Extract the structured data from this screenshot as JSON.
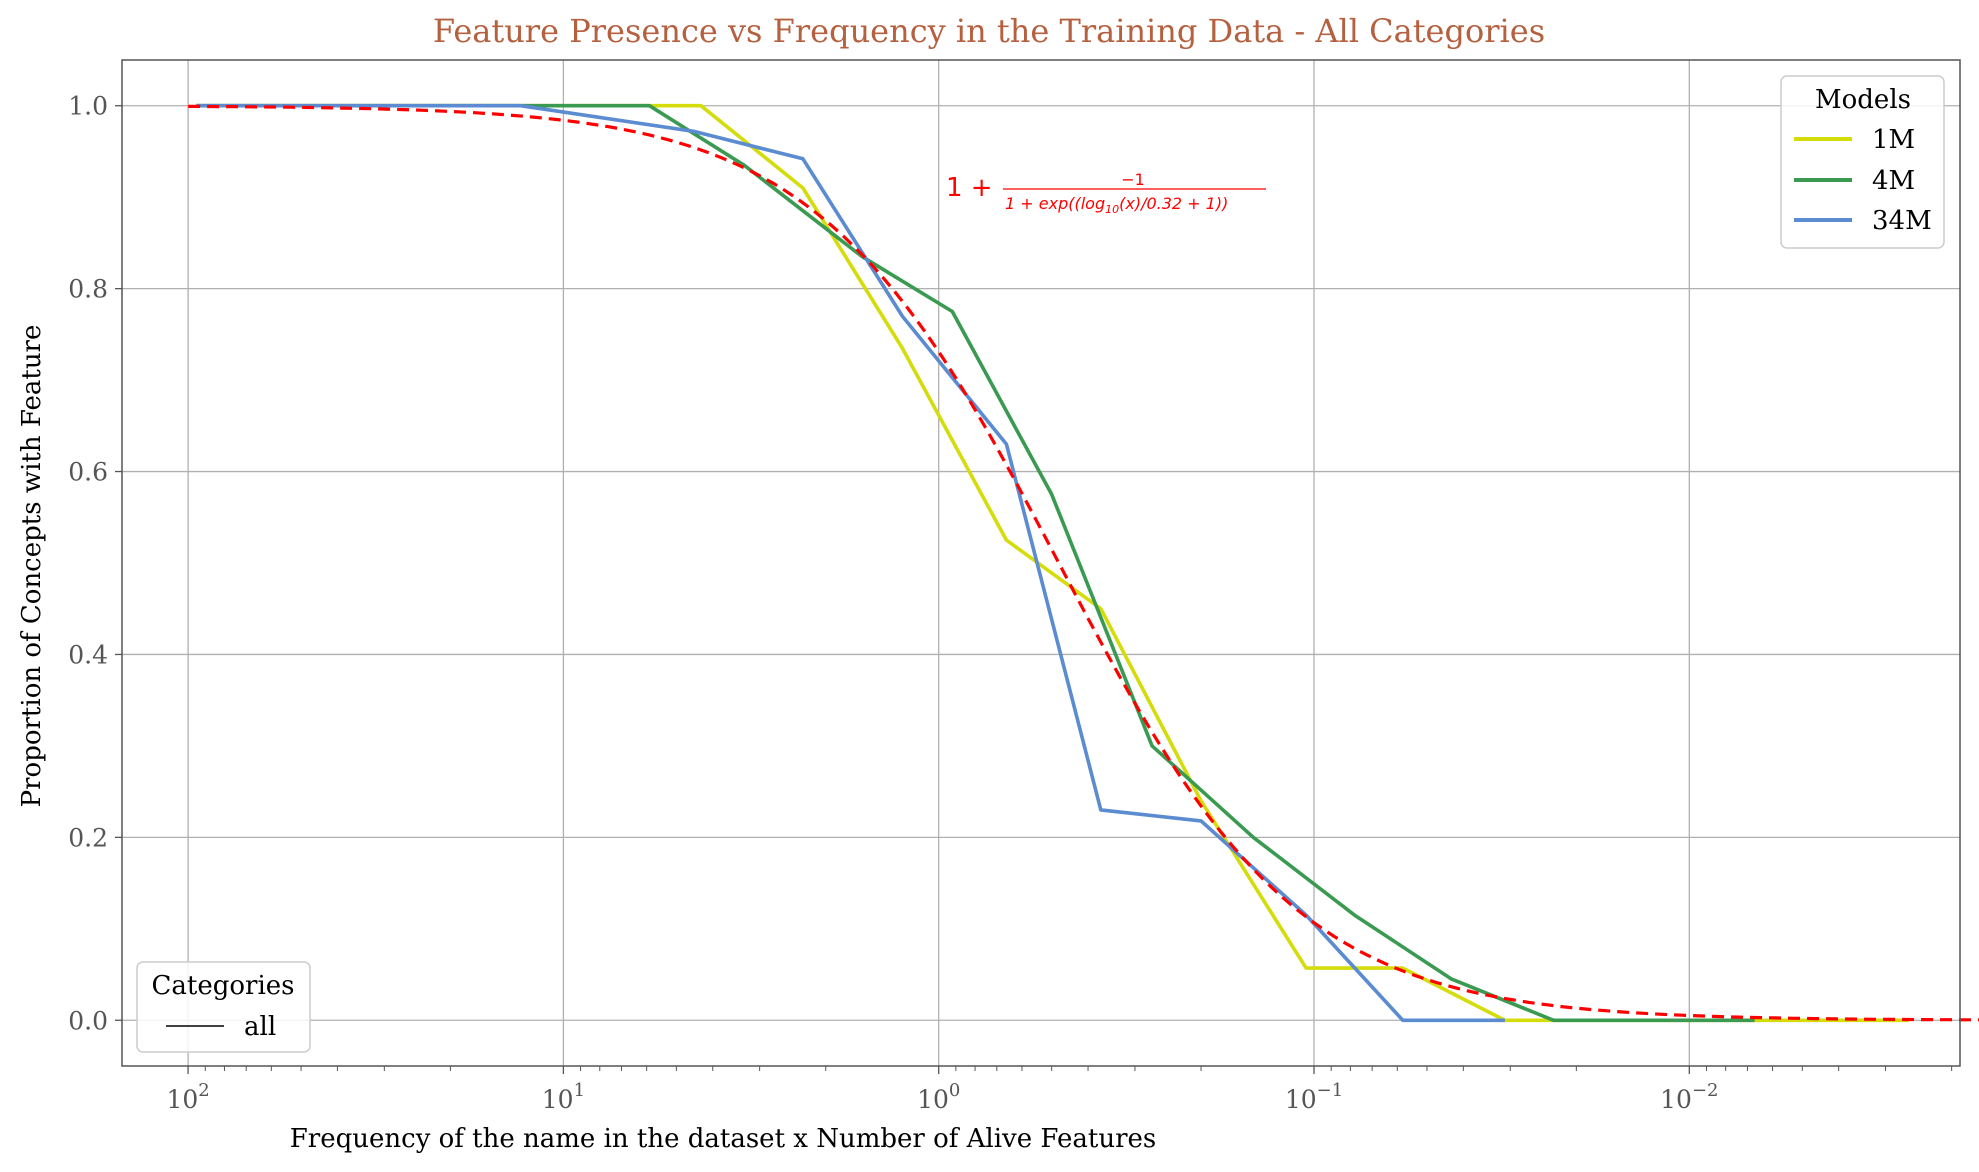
{
  "chart_data": {
    "type": "line",
    "title": "Feature Presence vs Frequency in the Training Data - All Categories",
    "xlabel": "Frequency of the name in the dataset x Number of Alive Features",
    "ylabel": "Proportion of Concepts with Feature",
    "x_scale": "log",
    "x_inverted": true,
    "xlim": [
      150,
      0.0019
    ],
    "ylim": [
      -0.05,
      1.05
    ],
    "x_ticks": [
      {
        "value": 100,
        "base": "10",
        "exp": "2"
      },
      {
        "value": 10,
        "base": "10",
        "exp": "1"
      },
      {
        "value": 1,
        "base": "10",
        "exp": "0"
      },
      {
        "value": 0.1,
        "base": "10",
        "exp": "−1"
      },
      {
        "value": 0.01,
        "base": "10",
        "exp": "−2"
      }
    ],
    "y_ticks": [
      {
        "value": 0.0,
        "label": "0.0"
      },
      {
        "value": 0.2,
        "label": "0.2"
      },
      {
        "value": 0.4,
        "label": "0.4"
      },
      {
        "value": 0.6,
        "label": "0.6"
      },
      {
        "value": 0.8,
        "label": "0.8"
      },
      {
        "value": 1.0,
        "label": "1.0"
      }
    ],
    "grid": true,
    "series": [
      {
        "name": "1M",
        "color": "#d4dc0a",
        "points": [
          [
            95,
            1.0
          ],
          [
            4.3,
            1.0
          ],
          [
            2.3,
            0.91
          ],
          [
            1.25,
            0.735
          ],
          [
            0.66,
            0.525
          ],
          [
            0.37,
            0.45
          ],
          [
            0.2,
            0.24
          ],
          [
            0.105,
            0.057
          ],
          [
            0.058,
            0.057
          ],
          [
            0.031,
            0.0
          ],
          [
            0.0026,
            0.0
          ]
        ]
      },
      {
        "name": "4M",
        "color": "#3a9a52",
        "points": [
          [
            95,
            1.0
          ],
          [
            5.9,
            1.0
          ],
          [
            3.3,
            0.935
          ],
          [
            1.6,
            0.835
          ],
          [
            0.92,
            0.775
          ],
          [
            0.5,
            0.575
          ],
          [
            0.27,
            0.3
          ],
          [
            0.145,
            0.2
          ],
          [
            0.078,
            0.115
          ],
          [
            0.043,
            0.045
          ],
          [
            0.023,
            0.0
          ],
          [
            0.0067,
            0.0
          ]
        ]
      },
      {
        "name": "34M",
        "color": "#5b8bd0",
        "points": [
          [
            95,
            1.0
          ],
          [
            13,
            1.0
          ],
          [
            4.5,
            0.972
          ],
          [
            2.3,
            0.942
          ],
          [
            1.25,
            0.77
          ],
          [
            0.66,
            0.63
          ],
          [
            0.37,
            0.23
          ],
          [
            0.2,
            0.218
          ],
          [
            0.105,
            0.115
          ],
          [
            0.058,
            0.0
          ],
          [
            0.031,
            0.0
          ]
        ]
      }
    ],
    "fit_curve": {
      "color": "#ff0000",
      "style": "dashed",
      "formula": "1 + -1 / (1 + exp((log10(x)/0.32 + 1)))"
    },
    "annotation": {
      "lead": "1 +",
      "numerator": "−1",
      "denominator": "1 + exp((log",
      "denominator_sub": "10",
      "denominator_tail": "(x)/0.32 + 1))"
    },
    "legend_models": {
      "title": "Models",
      "placement": "top-right",
      "entries": [
        "1M",
        "4M",
        "34M"
      ]
    },
    "legend_categories": {
      "title": "Categories",
      "placement": "bottom-left",
      "entries": [
        "all"
      ]
    },
    "colors": {
      "title": "#b5603f",
      "grid": "#b0b0b0",
      "axes": "#555555"
    }
  }
}
